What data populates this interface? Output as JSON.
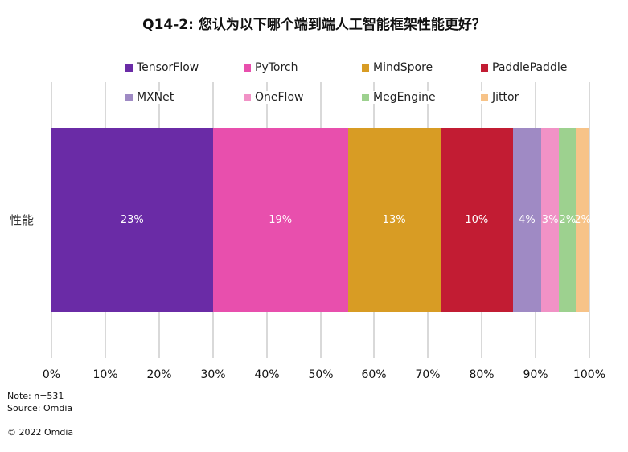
{
  "title": "Q14-2: 您认为以下哪个端到端人工智能框架性能更好？",
  "legend": [
    {
      "label": "TensorFlow",
      "color": "#6a2ba6"
    },
    {
      "label": "PyTorch",
      "color": "#e84fad"
    },
    {
      "label": "MindSpore",
      "color": "#d89c24"
    },
    {
      "label": "PaddlePaddle",
      "color": "#c21c33"
    },
    {
      "label": "MXNet",
      "color": "#9f8ac4"
    },
    {
      "label": "OneFlow",
      "color": "#f192c6"
    },
    {
      "label": "MegEngine",
      "color": "#9dd18f"
    },
    {
      "label": "Jittor",
      "color": "#f7c388"
    }
  ],
  "category_label": "性能",
  "axis": {
    "ticks": [
      "0%",
      "10%",
      "20%",
      "30%",
      "40%",
      "50%",
      "60%",
      "70%",
      "80%",
      "90%",
      "100%"
    ]
  },
  "footer": {
    "note": "Note: n=531",
    "source": "Source: Omdia",
    "copyright": "© 2022 Omdia"
  },
  "chart_data": {
    "type": "bar",
    "orientation": "horizontal",
    "stacked": "100%",
    "title": "Q14-2: 您认为以下哪个端到端人工智能框架性能更好？",
    "categories": [
      "性能"
    ],
    "series": [
      {
        "name": "TensorFlow",
        "label": "23%",
        "values": [
          23
        ],
        "rendered_share_pct": 30.0,
        "color": "#6a2ba6"
      },
      {
        "name": "PyTorch",
        "label": "19%",
        "values": [
          19
        ],
        "rendered_share_pct": 25.1,
        "color": "#e84fad"
      },
      {
        "name": "MindSpore",
        "label": "13%",
        "values": [
          13
        ],
        "rendered_share_pct": 17.2,
        "color": "#d89c24"
      },
      {
        "name": "PaddlePaddle",
        "label": "10%",
        "values": [
          10
        ],
        "rendered_share_pct": 13.5,
        "color": "#c21c33"
      },
      {
        "name": "MXNet",
        "label": "4%",
        "values": [
          4
        ],
        "rendered_share_pct": 5.2,
        "color": "#9f8ac4"
      },
      {
        "name": "OneFlow",
        "label": "3%",
        "values": [
          3
        ],
        "rendered_share_pct": 3.4,
        "color": "#f192c6"
      },
      {
        "name": "MegEngine",
        "label": "2%",
        "values": [
          2
        ],
        "rendered_share_pct": 3.1,
        "color": "#9dd18f"
      },
      {
        "name": "Jittor",
        "label": "2%",
        "values": [
          2
        ],
        "rendered_share_pct": 2.5,
        "color": "#f7c388"
      }
    ],
    "xlabel": "",
    "ylabel": "",
    "xlim": [
      0,
      100
    ],
    "x_tick_labels": [
      "0%",
      "10%",
      "20%",
      "30%",
      "40%",
      "50%",
      "60%",
      "70%",
      "80%",
      "90%",
      "100%"
    ],
    "grid": {
      "vertical": true,
      "horizontal": false
    },
    "legend_position": "top",
    "notes": [
      "Note: n=531",
      "Source: Omdia",
      "© 2022 Omdia"
    ]
  }
}
